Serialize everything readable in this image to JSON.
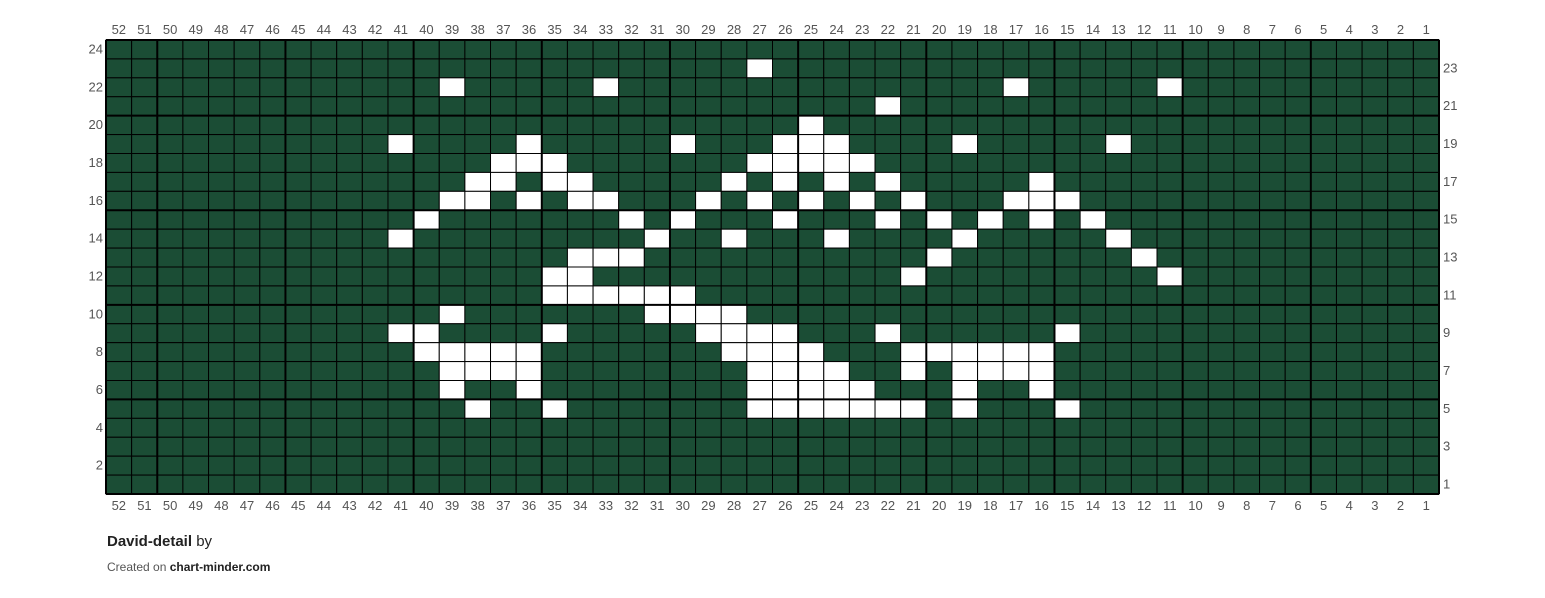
{
  "chart_data": {
    "type": "heatmap",
    "title": "David-detail",
    "columns": 52,
    "rows": 24,
    "column_labels_order": "52 to 1, left to right",
    "row_labels": {
      "left": "even rows",
      "right": "odd rows"
    },
    "colors": {
      "background": "#1b4d35",
      "contrast": "#ffffff",
      "grid": "#000000"
    },
    "white_cells_by_row": {
      "23": [
        27
      ],
      "22": [
        39,
        33,
        17,
        11
      ],
      "21": [
        22
      ],
      "20": [
        25
      ],
      "19": [
        41,
        36,
        30,
        26,
        25,
        24,
        19,
        13
      ],
      "18": [
        37,
        36,
        35,
        27,
        26,
        25,
        24,
        23
      ],
      "17": [
        38,
        37,
        35,
        34,
        28,
        26,
        24,
        22,
        16
      ],
      "16": [
        39,
        38,
        36,
        34,
        33,
        29,
        27,
        25,
        23,
        21,
        17,
        16,
        15
      ],
      "15": [
        40,
        32,
        30,
        26,
        22,
        20,
        18,
        16,
        14
      ],
      "14": [
        41,
        31,
        28,
        24,
        19,
        13
      ],
      "13": [
        34,
        33,
        32,
        20,
        12
      ],
      "12": [
        35,
        34,
        21,
        11
      ],
      "11": [
        35,
        34,
        33,
        32,
        31,
        30
      ],
      "10": [
        39,
        31,
        30,
        29,
        28
      ],
      "9": [
        41,
        40,
        35,
        29,
        28,
        27,
        26,
        22,
        15
      ],
      "8": [
        40,
        39,
        38,
        37,
        36,
        28,
        27,
        26,
        25,
        21,
        20,
        19,
        18,
        17,
        16
      ],
      "7": [
        39,
        38,
        37,
        36,
        27,
        26,
        25,
        24,
        21,
        19,
        18,
        17,
        16
      ],
      "6": [
        39,
        36,
        27,
        26,
        25,
        24,
        23,
        19,
        16
      ],
      "5": [
        38,
        35,
        27,
        26,
        25,
        24,
        23,
        22,
        21,
        19,
        15
      ]
    }
  },
  "footer": {
    "title": "David-detail",
    "by": "by",
    "created_on": "Created on",
    "site": "chart-minder.com"
  }
}
